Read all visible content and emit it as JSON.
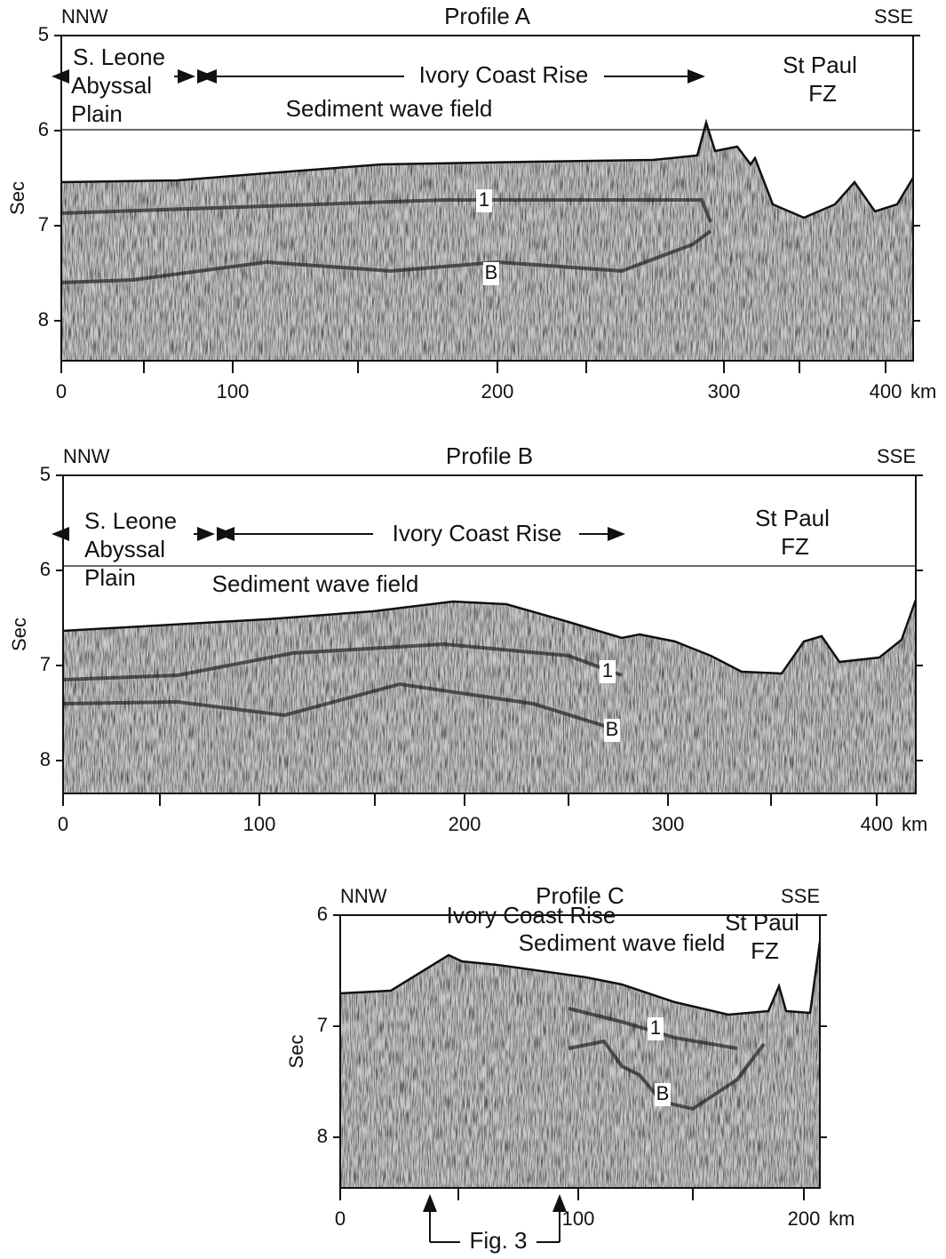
{
  "panels": [
    {
      "title": "Profile A",
      "left": "NNW",
      "right": "SSE",
      "y_label": "Sec",
      "x_unit": "km",
      "yticks": [
        5,
        6,
        7,
        8
      ],
      "xticks": [
        0,
        100,
        200,
        300,
        400
      ],
      "annotations": [
        "S. Leone",
        "Abyssal",
        "Plain",
        "Ivory Coast Rise",
        "St Paul",
        "FZ",
        "Sediment wave field",
        "1",
        "B"
      ]
    },
    {
      "title": "Profile B",
      "left": "NNW",
      "right": "SSE",
      "y_label": "Sec",
      "x_unit": "km",
      "yticks": [
        5,
        6,
        7,
        8
      ],
      "xticks": [
        0,
        100,
        200,
        300,
        400
      ],
      "annotations": [
        "S. Leone",
        "Abyssal",
        "Plain",
        "Ivory Coast Rise",
        "St Paul",
        "FZ",
        "Sediment wave field",
        "1",
        "B"
      ]
    },
    {
      "title": "Profile C",
      "left": "NNW",
      "right": "SSE",
      "y_label": "Sec",
      "x_unit": "km",
      "yticks": [
        6,
        7,
        8
      ],
      "xticks": [
        0,
        100,
        200
      ],
      "annotations": [
        "Ivory Coast Rise",
        "St Paul",
        "FZ",
        "Sediment wave field",
        "1",
        "B"
      ]
    }
  ],
  "footer": {
    "label": "Fig. 3"
  }
}
